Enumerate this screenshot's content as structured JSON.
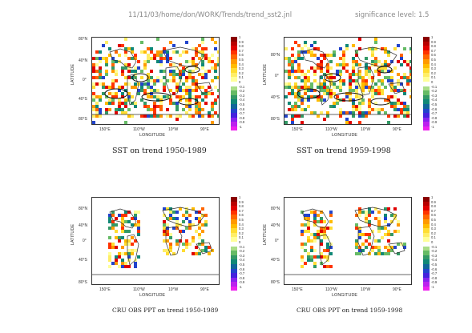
{
  "header": {
    "path": "11/11/03/home/don/WORK/Trends/trend_sst2.jnl",
    "significance": "significance level: 1.5"
  },
  "axes": {
    "ylabel": "LATITUDE",
    "xlabel": "LONGITUDE",
    "yticks": [
      "80°N",
      "40°N",
      "0°",
      "40°S",
      "80°S"
    ],
    "xticks": [
      "150°E",
      "110°W",
      "10°W",
      "90°E"
    ]
  },
  "colorbar": {
    "labels": [
      "1",
      "0.9",
      "0.8",
      "0.7",
      "0.6",
      "0.5",
      "0.4",
      "0.3",
      "0.2",
      "0.1",
      "0",
      "-0.1",
      "-0.2",
      "-0.3",
      "-0.4",
      "-0.5",
      "-0.6",
      "-0.7",
      "-0.8",
      "-0.9",
      "-1"
    ],
    "colors": [
      "#8b0000",
      "#b80000",
      "#e00000",
      "#ff3300",
      "#ff6600",
      "#ff9900",
      "#ffbb00",
      "#ffdd33",
      "#ffee66",
      "#ffff99",
      "#ffffff",
      "#aadd88",
      "#66bb66",
      "#339966",
      "#118877",
      "#116699",
      "#2244cc",
      "#4422dd",
      "#8822ee",
      "#bb22ee",
      "#ee22ee"
    ]
  },
  "panels": [
    {
      "title": "SST on trend 1950-1989",
      "kind": "sst"
    },
    {
      "title": "SST on trend 1959-1998",
      "kind": "sst"
    },
    {
      "title": "CRU OBS PPT on trend 1950-1989",
      "kind": "ppt"
    },
    {
      "title": "CRU OBS PPT on trend 1959-1998",
      "kind": "ppt"
    }
  ]
}
